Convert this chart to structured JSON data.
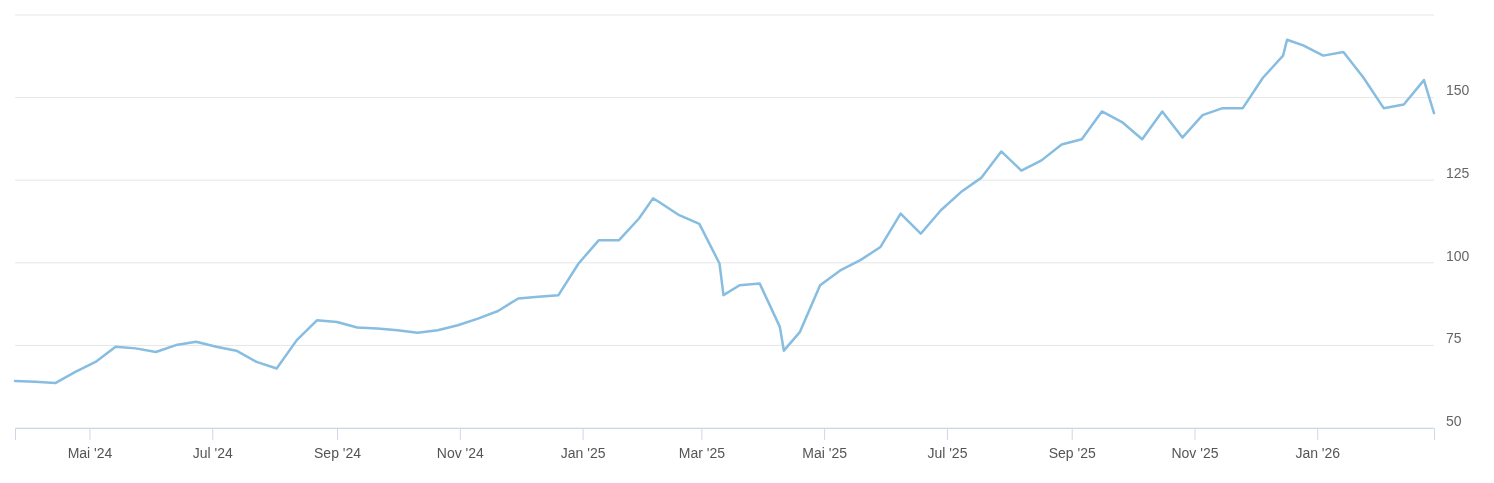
{
  "chart_data": {
    "type": "line",
    "xlim": [
      "2024-03-25",
      "2026-02-28"
    ],
    "ylim": [
      50,
      175
    ],
    "yticks": [
      50,
      75,
      100,
      125,
      150,
      {
        "value": 175,
        "label": null
      }
    ],
    "xticks": [
      {
        "value": "2024-05-01",
        "label": "Mai '24"
      },
      {
        "value": "2024-07-01",
        "label": "Jul '24"
      },
      {
        "value": "2024-09-01",
        "label": "Sep '24"
      },
      {
        "value": "2024-11-01",
        "label": "Nov '24"
      },
      {
        "value": "2025-01-01",
        "label": "Jan '25"
      },
      {
        "value": "2025-03-01",
        "label": "Mar '25"
      },
      {
        "value": "2025-05-01",
        "label": "Mai '25"
      },
      {
        "value": "2025-07-01",
        "label": "Jul '25"
      },
      {
        "value": "2025-09-01",
        "label": "Sep '25"
      },
      {
        "value": "2025-11-01",
        "label": "Nov '25"
      },
      {
        "value": "2026-01-01",
        "label": "Jan '26"
      }
    ],
    "grid": "y",
    "legend": false,
    "marker": "none",
    "line_style": "solid",
    "x": [
      "2024-03-25",
      "2024-04-04",
      "2024-04-14",
      "2024-04-24",
      "2024-05-04",
      "2024-05-14",
      "2024-05-24",
      "2024-06-03",
      "2024-06-13",
      "2024-06-23",
      "2024-07-03",
      "2024-07-13",
      "2024-07-23",
      "2024-08-02",
      "2024-08-12",
      "2024-08-22",
      "2024-09-01",
      "2024-09-11",
      "2024-09-21",
      "2024-10-01",
      "2024-10-11",
      "2024-10-21",
      "2024-10-31",
      "2024-11-10",
      "2024-11-20",
      "2024-11-30",
      "2024-12-10",
      "2024-12-20",
      "2024-12-30",
      "2025-01-09",
      "2025-01-19",
      "2025-01-29",
      "2025-02-05",
      "2025-02-08",
      "2025-02-18",
      "2025-02-28",
      "2025-03-10",
      "2025-03-12",
      "2025-03-20",
      "2025-03-30",
      "2025-04-09",
      "2025-04-11",
      "2025-04-19",
      "2025-04-29",
      "2025-05-09",
      "2025-05-19",
      "2025-05-29",
      "2025-06-08",
      "2025-06-18",
      "2025-06-28",
      "2025-07-08",
      "2025-07-18",
      "2025-07-28",
      "2025-08-07",
      "2025-08-17",
      "2025-08-27",
      "2025-09-06",
      "2025-09-16",
      "2025-09-26",
      "2025-10-06",
      "2025-10-16",
      "2025-10-26",
      "2025-11-05",
      "2025-11-15",
      "2025-11-25",
      "2025-12-05",
      "2025-12-15",
      "2025-12-17",
      "2025-12-25",
      "2026-01-04",
      "2026-01-14",
      "2026-01-24",
      "2026-02-03",
      "2026-02-13",
      "2026-02-23",
      "2026-02-28"
    ],
    "series": [
      {
        "color": "#86bde0",
        "values": [
          64.2,
          64.0,
          63.6,
          67.0,
          70.0,
          74.6,
          74.1,
          73.0,
          75.1,
          76.1,
          74.6,
          73.4,
          70.0,
          68.0,
          76.6,
          82.6,
          82.1,
          80.4,
          80.1,
          79.6,
          78.8,
          79.6,
          81.1,
          83.1,
          85.4,
          89.2,
          89.7,
          90.2,
          99.8,
          106.8,
          106.8,
          113.4,
          119.5,
          118.4,
          114.4,
          111.8,
          99.8,
          90.2,
          93.2,
          93.7,
          80.6,
          73.4,
          79.1,
          93.2,
          97.7,
          100.8,
          104.8,
          114.9,
          108.8,
          115.9,
          121.4,
          125.7,
          133.7,
          127.9,
          131.0,
          135.8,
          137.4,
          145.8,
          142.6,
          137.4,
          145.8,
          137.9,
          144.7,
          146.8,
          146.8,
          156.0,
          162.7,
          167.5,
          165.8,
          162.7,
          163.8,
          156.0,
          146.8,
          147.9,
          155.3,
          145.3
        ]
      }
    ]
  }
}
